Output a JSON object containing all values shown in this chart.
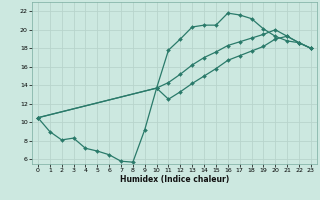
{
  "xlabel": "Humidex (Indice chaleur)",
  "bg_color": "#cce8e0",
  "grid_color": "#b8d4cc",
  "line_color": "#2a7a6a",
  "xlim": [
    -0.5,
    23.5
  ],
  "ylim": [
    5.5,
    23
  ],
  "xticks": [
    0,
    1,
    2,
    3,
    4,
    5,
    6,
    7,
    8,
    9,
    10,
    11,
    12,
    13,
    14,
    15,
    16,
    17,
    18,
    19,
    20,
    21,
    22,
    23
  ],
  "yticks": [
    6,
    8,
    10,
    12,
    14,
    16,
    18,
    20,
    22
  ],
  "line1_x": [
    0,
    1,
    2,
    3,
    4,
    5,
    6,
    7,
    8,
    9,
    10,
    11,
    12,
    13,
    14,
    15,
    16,
    17,
    18,
    19,
    20,
    21,
    22,
    23
  ],
  "line1_y": [
    10.5,
    9.0,
    8.1,
    8.3,
    7.2,
    6.9,
    6.5,
    5.8,
    5.7,
    9.2,
    13.7,
    17.8,
    19.0,
    20.3,
    20.5,
    20.5,
    21.8,
    21.6,
    21.2,
    20.1,
    19.3,
    18.8,
    18.6,
    18.0
  ],
  "line2_x": [
    0,
    10,
    11,
    12,
    13,
    14,
    15,
    16,
    17,
    18,
    19,
    20,
    21,
    22,
    23
  ],
  "line2_y": [
    10.5,
    13.7,
    14.3,
    15.2,
    16.2,
    17.0,
    17.6,
    18.3,
    18.7,
    19.1,
    19.5,
    20.0,
    19.3,
    18.6,
    18.0
  ],
  "line3_x": [
    0,
    10,
    11,
    12,
    13,
    14,
    15,
    16,
    17,
    18,
    19,
    20,
    21,
    22,
    23
  ],
  "line3_y": [
    10.5,
    13.7,
    12.5,
    13.3,
    14.2,
    15.0,
    15.8,
    16.7,
    17.2,
    17.7,
    18.2,
    19.0,
    19.3,
    18.6,
    18.0
  ]
}
